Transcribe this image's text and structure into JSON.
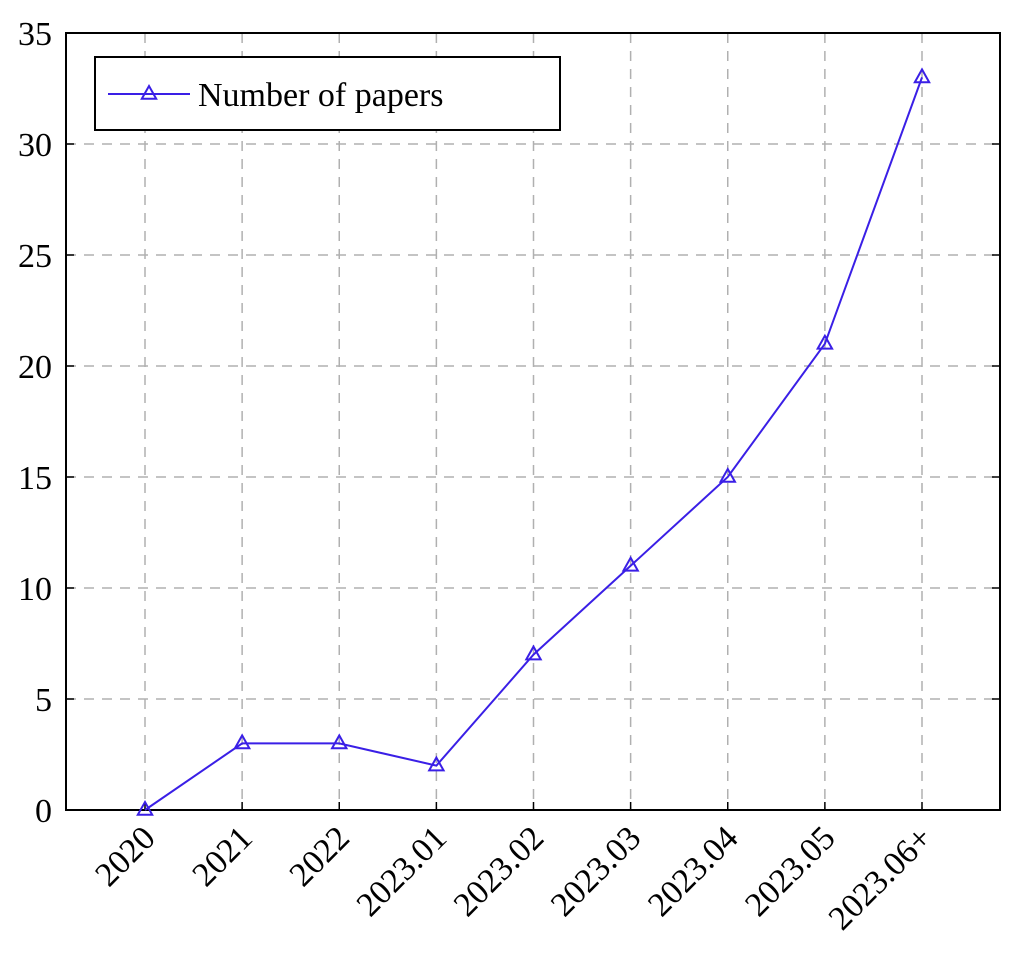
{
  "chart_data": {
    "type": "line",
    "categories": [
      "2020",
      "2021",
      "2022",
      "2023.01",
      "2023.02",
      "2023.03",
      "2023.04",
      "2023.05",
      "2023.06+"
    ],
    "series": [
      {
        "name": "Number of papers",
        "color": "#3a1fe6",
        "values": [
          0,
          3,
          3,
          2,
          7,
          11,
          15,
          21,
          33
        ]
      }
    ],
    "ylim": [
      0,
      35
    ],
    "yticks": [
      0,
      5,
      10,
      15,
      20,
      25,
      30,
      35
    ],
    "grid": true,
    "legend": "top-left"
  }
}
